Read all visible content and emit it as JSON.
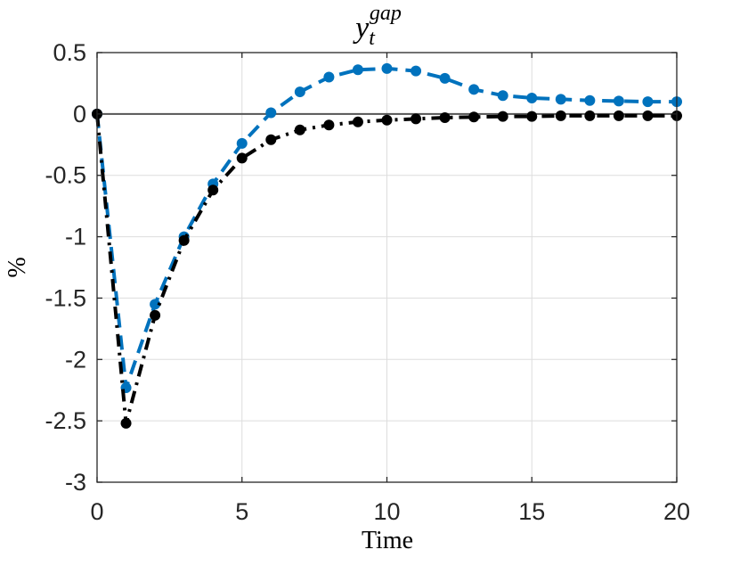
{
  "chart_data": {
    "type": "line",
    "title": {
      "base": "y",
      "subscript": "t",
      "superscript": "gap"
    },
    "xlabel": "Time",
    "ylabel": "%",
    "xlim": [
      0,
      20
    ],
    "ylim": [
      -3,
      0.5
    ],
    "grid": true,
    "xticks": [
      {
        "value": 0,
        "label": "0"
      },
      {
        "value": 5,
        "label": "5"
      },
      {
        "value": 10,
        "label": "10"
      },
      {
        "value": 15,
        "label": "15"
      },
      {
        "value": 20,
        "label": "20"
      }
    ],
    "yticks": [
      {
        "value": 0.5,
        "label": "0.5"
      },
      {
        "value": 0,
        "label": "0"
      },
      {
        "value": -0.5,
        "label": "-0.5"
      },
      {
        "value": -1,
        "label": "-1"
      },
      {
        "value": -1.5,
        "label": "-1.5"
      },
      {
        "value": -2,
        "label": "-2"
      },
      {
        "value": -2.5,
        "label": "-2.5"
      },
      {
        "value": -3,
        "label": "-3"
      }
    ],
    "zero_line": 0,
    "series": [
      {
        "name": "series-blue-dashed",
        "color": "#0072BD",
        "line_style": "dashed",
        "marker": "circle",
        "x": [
          0,
          1,
          2,
          3,
          4,
          5,
          6,
          7,
          8,
          9,
          10,
          11,
          12,
          13,
          14,
          15,
          16,
          17,
          18,
          19,
          20
        ],
        "values": [
          0,
          -2.23,
          -1.55,
          -1.0,
          -0.57,
          -0.24,
          0.01,
          0.18,
          0.3,
          0.36,
          0.37,
          0.35,
          0.29,
          0.2,
          0.15,
          0.13,
          0.12,
          0.11,
          0.105,
          0.1,
          0.1
        ]
      },
      {
        "name": "series-black-dashdot",
        "color": "#000000",
        "line_style": "dashdot",
        "marker": "circle",
        "x": [
          0,
          1,
          2,
          3,
          4,
          5,
          6,
          7,
          8,
          9,
          10,
          11,
          12,
          13,
          14,
          15,
          16,
          17,
          18,
          19,
          20
        ],
        "values": [
          0,
          -2.52,
          -1.64,
          -1.03,
          -0.62,
          -0.36,
          -0.21,
          -0.13,
          -0.09,
          -0.065,
          -0.05,
          -0.04,
          -0.03,
          -0.025,
          -0.02,
          -0.02,
          -0.015,
          -0.015,
          -0.015,
          -0.015,
          -0.015
        ]
      }
    ]
  }
}
